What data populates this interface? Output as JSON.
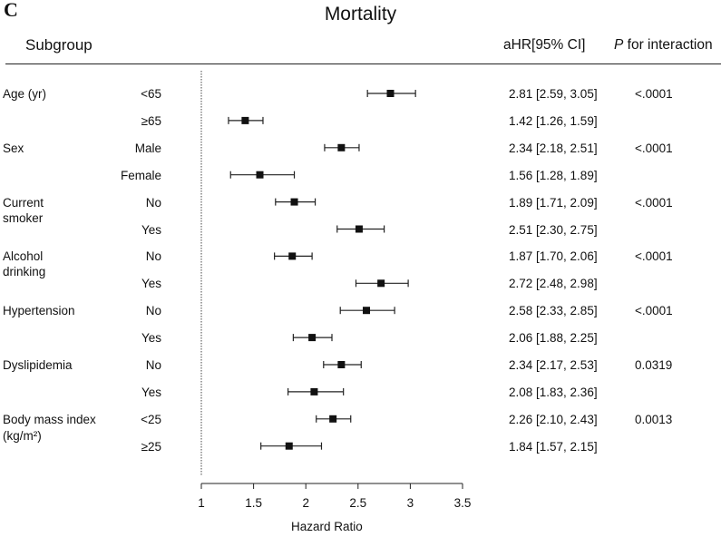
{
  "panel_label": "C",
  "header": {
    "subgroup": "Subgroup",
    "ahr": "aHR[95% CI]",
    "p_italic": "P",
    "p_rest": " for interaction"
  },
  "chart_data": {
    "type": "forest",
    "title": "Mortality",
    "xlabel": "Hazard Ratio",
    "xlim": [
      1,
      3.5
    ],
    "xticks": [
      "1",
      "1.5",
      "2",
      "2.5",
      "3",
      "3.5"
    ],
    "reference_line": 1,
    "groups": [
      {
        "label": "Age (yr)",
        "p": "<.0001",
        "rows": [
          {
            "level": "<65",
            "hr": 2.81,
            "lo": 2.59,
            "hi": 3.05,
            "text": "2.81 [2.59, 3.05]"
          },
          {
            "level": "≥65",
            "hr": 1.42,
            "lo": 1.26,
            "hi": 1.59,
            "text": "1.42 [1.26, 1.59]"
          }
        ]
      },
      {
        "label": "Sex",
        "p": "<.0001",
        "rows": [
          {
            "level": "Male",
            "hr": 2.34,
            "lo": 2.18,
            "hi": 2.51,
            "text": "2.34 [2.18, 2.51]"
          },
          {
            "level": "Female",
            "hr": 1.56,
            "lo": 1.28,
            "hi": 1.89,
            "text": "1.56 [1.28, 1.89]"
          }
        ]
      },
      {
        "label": "Current smoker",
        "p": "<.0001",
        "rows": [
          {
            "level": "No",
            "hr": 1.89,
            "lo": 1.71,
            "hi": 2.09,
            "text": "1.89 [1.71, 2.09]"
          },
          {
            "level": "Yes",
            "hr": 2.51,
            "lo": 2.3,
            "hi": 2.75,
            "text": "2.51 [2.30, 2.75]"
          }
        ]
      },
      {
        "label": "Alcohol drinking",
        "p": "<.0001",
        "rows": [
          {
            "level": "No",
            "hr": 1.87,
            "lo": 1.7,
            "hi": 2.06,
            "text": "1.87 [1.70, 2.06]"
          },
          {
            "level": "Yes",
            "hr": 2.72,
            "lo": 2.48,
            "hi": 2.98,
            "text": "2.72 [2.48, 2.98]"
          }
        ]
      },
      {
        "label": "Hypertension",
        "p": "<.0001",
        "rows": [
          {
            "level": "No",
            "hr": 2.58,
            "lo": 2.33,
            "hi": 2.85,
            "text": "2.58 [2.33, 2.85]"
          },
          {
            "level": "Yes",
            "hr": 2.06,
            "lo": 1.88,
            "hi": 2.25,
            "text": "2.06 [1.88, 2.25]"
          }
        ]
      },
      {
        "label": "Dyslipidemia",
        "p": "0.0319",
        "rows": [
          {
            "level": "No",
            "hr": 2.34,
            "lo": 2.17,
            "hi": 2.53,
            "text": "2.34 [2.17, 2.53]"
          },
          {
            "level": "Yes",
            "hr": 2.08,
            "lo": 1.83,
            "hi": 2.36,
            "text": "2.08 [1.83, 2.36]"
          }
        ]
      },
      {
        "label": "Body mass index",
        "label_unit": "(kg/m²)",
        "p": "0.0013",
        "rows": [
          {
            "level": "<25",
            "hr": 2.26,
            "lo": 2.1,
            "hi": 2.43,
            "text": "2.26 [2.10, 2.43]"
          },
          {
            "level": "≥25",
            "hr": 1.84,
            "lo": 1.57,
            "hi": 2.15,
            "text": "1.84 [1.57, 2.15]"
          }
        ]
      }
    ]
  }
}
